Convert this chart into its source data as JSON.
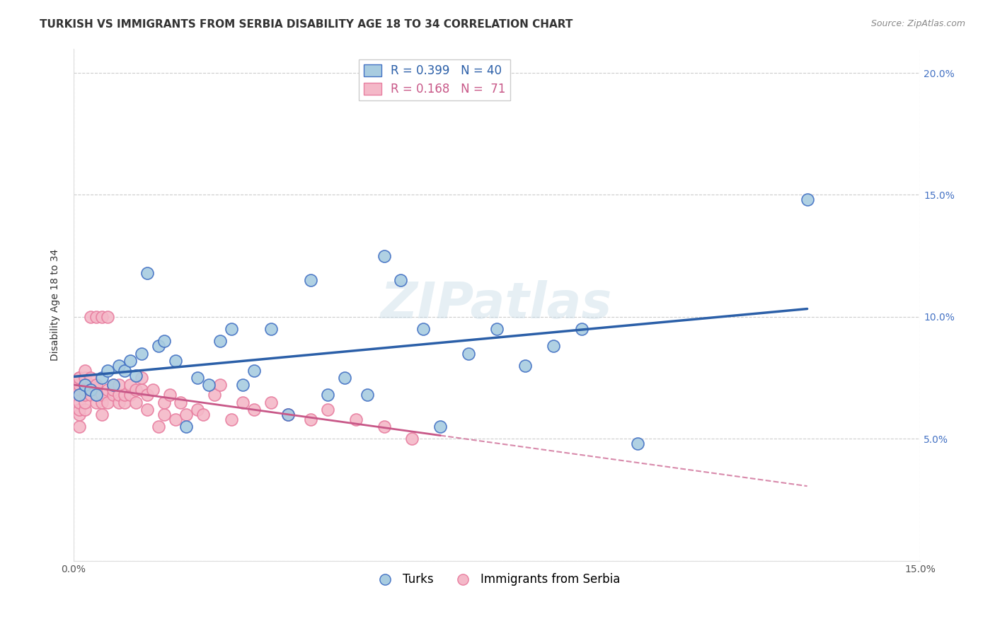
{
  "title": "TURKISH VS IMMIGRANTS FROM SERBIA DISABILITY AGE 18 TO 34 CORRELATION CHART",
  "source": "Source: ZipAtlas.com",
  "ylabel": "Disability Age 18 to 34",
  "xlim": [
    0.0,
    0.15
  ],
  "ylim": [
    0.0,
    0.21
  ],
  "y_ticks_right": [
    0.0,
    0.05,
    0.1,
    0.15,
    0.2
  ],
  "legend_label_blue": "R = 0.399   N = 40",
  "legend_label_pink": "R = 0.168   N =  71",
  "legend_bottom_blue": "Turks",
  "legend_bottom_pink": "Immigrants from Serbia",
  "turks_x": [
    0.001,
    0.002,
    0.003,
    0.004,
    0.005,
    0.006,
    0.007,
    0.008,
    0.009,
    0.01,
    0.011,
    0.012,
    0.013,
    0.015,
    0.016,
    0.018,
    0.02,
    0.022,
    0.024,
    0.026,
    0.028,
    0.03,
    0.032,
    0.035,
    0.038,
    0.042,
    0.045,
    0.048,
    0.052,
    0.055,
    0.058,
    0.062,
    0.065,
    0.07,
    0.075,
    0.08,
    0.085,
    0.09,
    0.1,
    0.13
  ],
  "turks_y": [
    0.068,
    0.072,
    0.07,
    0.068,
    0.075,
    0.078,
    0.072,
    0.08,
    0.078,
    0.082,
    0.076,
    0.085,
    0.118,
    0.088,
    0.09,
    0.082,
    0.055,
    0.075,
    0.072,
    0.09,
    0.095,
    0.072,
    0.078,
    0.095,
    0.06,
    0.115,
    0.068,
    0.075,
    0.068,
    0.125,
    0.115,
    0.095,
    0.055,
    0.085,
    0.095,
    0.08,
    0.088,
    0.095,
    0.048,
    0.148
  ],
  "serbia_x": [
    0.001,
    0.001,
    0.001,
    0.001,
    0.001,
    0.001,
    0.001,
    0.001,
    0.001,
    0.002,
    0.002,
    0.002,
    0.002,
    0.002,
    0.002,
    0.002,
    0.003,
    0.003,
    0.003,
    0.003,
    0.003,
    0.004,
    0.004,
    0.004,
    0.004,
    0.004,
    0.005,
    0.005,
    0.005,
    0.005,
    0.006,
    0.006,
    0.006,
    0.007,
    0.007,
    0.007,
    0.008,
    0.008,
    0.008,
    0.009,
    0.009,
    0.01,
    0.01,
    0.011,
    0.011,
    0.012,
    0.012,
    0.013,
    0.013,
    0.014,
    0.015,
    0.016,
    0.016,
    0.017,
    0.018,
    0.019,
    0.02,
    0.022,
    0.023,
    0.025,
    0.026,
    0.028,
    0.03,
    0.032,
    0.035,
    0.038,
    0.042,
    0.045,
    0.05,
    0.055,
    0.06
  ],
  "serbia_y": [
    0.055,
    0.06,
    0.062,
    0.065,
    0.068,
    0.07,
    0.072,
    0.075,
    0.075,
    0.062,
    0.065,
    0.068,
    0.07,
    0.072,
    0.075,
    0.078,
    0.068,
    0.07,
    0.072,
    0.075,
    0.1,
    0.065,
    0.068,
    0.07,
    0.072,
    0.1,
    0.06,
    0.065,
    0.068,
    0.1,
    0.065,
    0.07,
    0.1,
    0.068,
    0.07,
    0.072,
    0.065,
    0.068,
    0.072,
    0.065,
    0.068,
    0.068,
    0.072,
    0.065,
    0.07,
    0.07,
    0.075,
    0.062,
    0.068,
    0.07,
    0.055,
    0.06,
    0.065,
    0.068,
    0.058,
    0.065,
    0.06,
    0.062,
    0.06,
    0.068,
    0.072,
    0.058,
    0.065,
    0.062,
    0.065,
    0.06,
    0.058,
    0.062,
    0.058,
    0.055,
    0.05
  ],
  "blue_color": "#a8cce0",
  "pink_color": "#f4b8c8",
  "blue_edge_color": "#4472c4",
  "pink_edge_color": "#e87ea0",
  "blue_line_color": "#2b5fa8",
  "pink_line_color": "#c85888",
  "background_color": "#ffffff",
  "watermark": "ZIPatlas",
  "title_fontsize": 11,
  "axis_label_fontsize": 10,
  "tick_fontsize": 10,
  "source_text": "Source: ZipAtlas.com"
}
